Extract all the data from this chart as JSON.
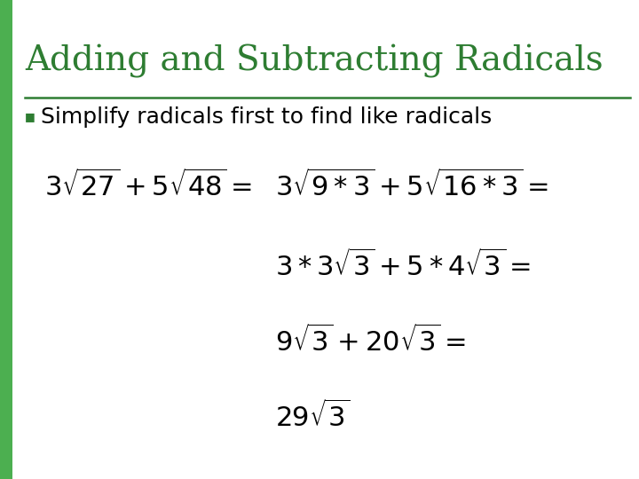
{
  "title": "Adding and Subtracting Radicals",
  "title_color": "#2E7D32",
  "title_fontsize": 28,
  "bullet_text": "Simplify radicals first to find like radicals",
  "bullet_fontsize": 18,
  "bullet_color": "#000000",
  "bullet_marker_color": "#2E7D32",
  "line_color": "#2E7D32",
  "bg_color": "#FFFFFF",
  "left_bar_color": "#4CAF50",
  "eq_fontsize": 22,
  "eq_color": "#000000",
  "fig_width": 7.2,
  "fig_height": 5.4,
  "dpi": 100
}
